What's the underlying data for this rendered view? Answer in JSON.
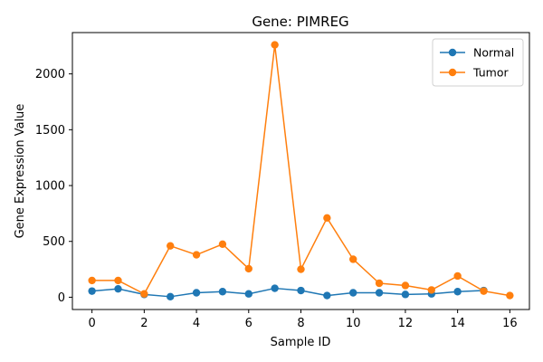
{
  "chart_data": {
    "type": "line",
    "title": "Gene: PIMREG",
    "xlabel": "Sample ID",
    "ylabel": "Gene Expression Value",
    "xlim": [
      -0.75,
      16.75
    ],
    "ylim": [
      -110,
      2370
    ],
    "xticks": [
      0,
      2,
      4,
      6,
      8,
      10,
      12,
      14,
      16
    ],
    "yticks": [
      0,
      500,
      1000,
      1500,
      2000
    ],
    "grid": false,
    "legend_position": "top-right",
    "series": [
      {
        "name": "Normal",
        "color": "#1f77b4",
        "x": [
          0,
          1,
          2,
          3,
          4,
          5,
          6,
          7,
          8,
          9,
          10,
          11,
          12,
          13,
          14,
          15
        ],
        "values": [
          55,
          75,
          25,
          5,
          40,
          50,
          30,
          80,
          60,
          15,
          40,
          40,
          25,
          30,
          50,
          60
        ]
      },
      {
        "name": "Tumor",
        "color": "#ff7f0e",
        "x": [
          0,
          1,
          2,
          3,
          4,
          5,
          6,
          7,
          8,
          9,
          10,
          11,
          12,
          13,
          14,
          15,
          16
        ],
        "values": [
          150,
          150,
          30,
          460,
          380,
          475,
          255,
          2260,
          250,
          710,
          340,
          125,
          105,
          65,
          190,
          55,
          15
        ]
      }
    ]
  }
}
